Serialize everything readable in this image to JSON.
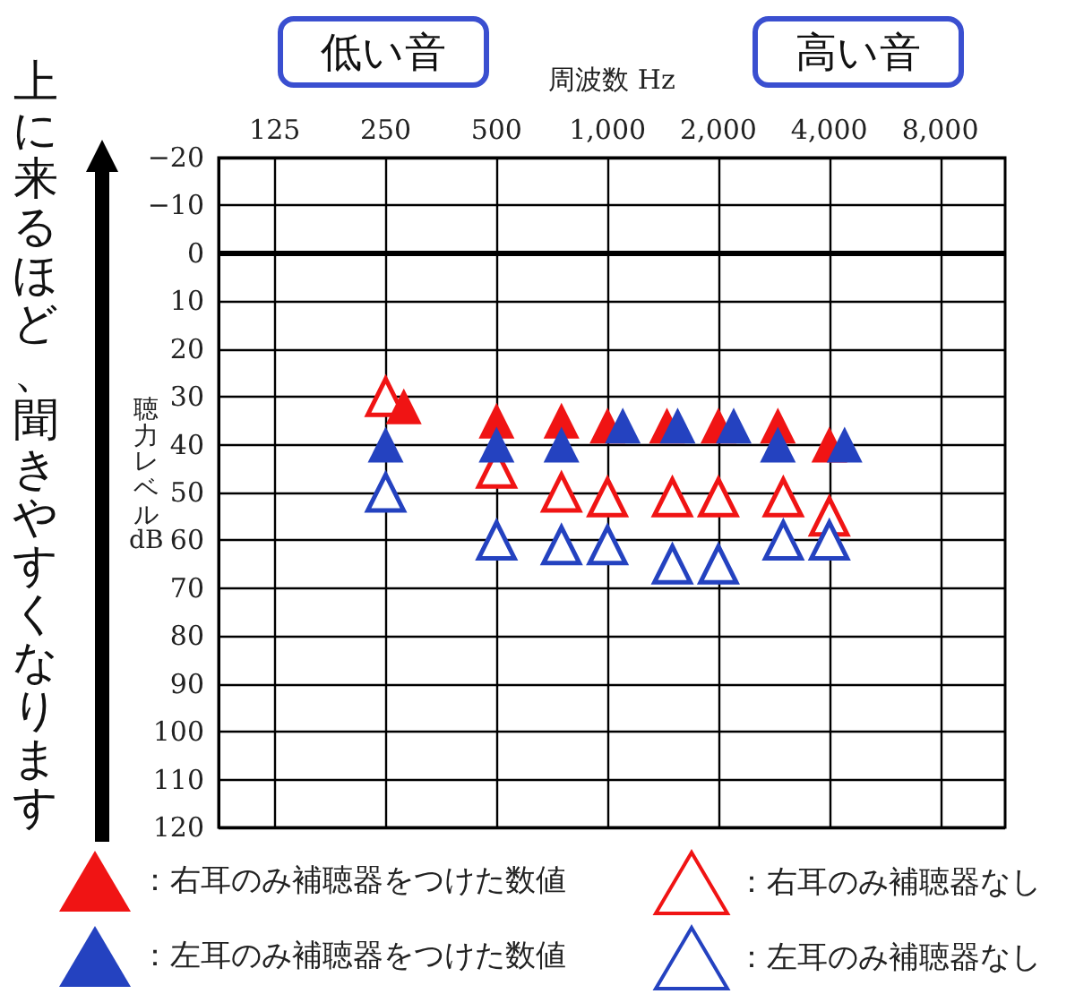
{
  "chart_data": {
    "type": "scatter",
    "xlabel": "周波数 Hz",
    "ylabel": "聴力レベル dB",
    "annotations": [
      "低い音",
      "高い音",
      "上に来るほど、聞きやすくなります"
    ],
    "log": "x",
    "xlim": [
      88,
      12000
    ],
    "xticks": [
      125,
      250,
      500,
      {
        "value": 1000,
        "label": "1,000"
      },
      {
        "value": 2000,
        "label": "2,000"
      },
      {
        "value": 4000,
        "label": "4,000"
      },
      {
        "value": 8000,
        "label": "8,000"
      }
    ],
    "ylim": [
      120,
      -20
    ],
    "yticks": [
      -20,
      -10,
      0,
      10,
      20,
      30,
      40,
      50,
      60,
      70,
      80,
      90,
      100,
      110,
      120
    ],
    "grid": true,
    "legend": "bottom",
    "marker": "triangle",
    "ref_lines": [
      {
        "axis": "y",
        "value": 0,
        "color": "#000000"
      }
    ],
    "series": [
      {
        "name": "：右耳のみ補聴器をつけた数値",
        "color": "#f01414",
        "x": [
          280,
          500,
          750,
          1000,
          1450,
          2000,
          2900,
          4000
        ],
        "values": [
          32,
          35,
          35,
          36,
          36,
          36,
          36,
          40
        ]
      },
      {
        "name": "：左耳のみ補聴器をつけた数値",
        "color": "#2442c0",
        "x": [
          250,
          500,
          750,
          1100,
          1550,
          2200,
          2900,
          4400
        ],
        "values": [
          40,
          40,
          40,
          36,
          36,
          36,
          40,
          40
        ]
      },
      {
        "name": "：右耳のみ補聴器なし",
        "color": "#f01414",
        "marker": "triangle-open",
        "x": [
          250,
          500,
          750,
          1000,
          1500,
          2000,
          3000,
          4000
        ],
        "values": [
          30,
          45,
          50,
          51,
          51,
          51,
          51,
          55
        ]
      },
      {
        "name": "：左耳のみ補聴器なし",
        "color": "#2442c0",
        "marker": "triangle-open",
        "x": [
          250,
          500,
          750,
          1000,
          1500,
          2000,
          3000,
          4000
        ],
        "values": [
          50,
          60,
          61,
          61,
          65,
          65,
          60,
          60
        ]
      }
    ]
  }
}
